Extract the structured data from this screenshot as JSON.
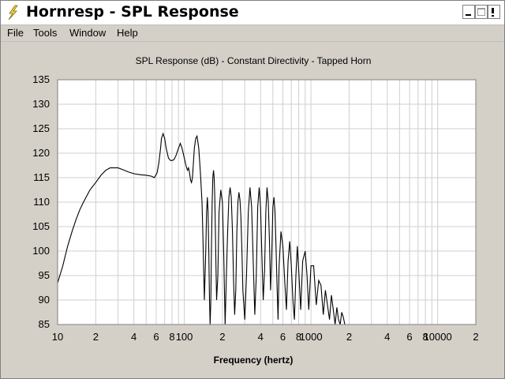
{
  "window": {
    "title": "Hornresp - SPL Response",
    "app_icon": "lightning-bolt-icon",
    "controls": [
      "minimize-icon",
      "maximize-icon",
      "close-icon"
    ]
  },
  "menu": {
    "items": [
      "File",
      "Tools",
      "Window",
      "Help"
    ]
  },
  "chart_data": {
    "type": "line",
    "title": "SPL Response (dB) - Constant Directivity - Tapped Horn",
    "xlabel": "Frequency (hertz)",
    "ylabel": "",
    "xscale": "log",
    "xlim": [
      10,
      20000
    ],
    "ylim": [
      85,
      135
    ],
    "yticks": [
      85,
      90,
      95,
      100,
      105,
      110,
      115,
      120,
      125,
      130,
      135
    ],
    "xtick_labels": [
      {
        "x": 10,
        "label": "10"
      },
      {
        "x": 20,
        "label": "2"
      },
      {
        "x": 40,
        "label": "4"
      },
      {
        "x": 60,
        "label": "6"
      },
      {
        "x": 80,
        "label": "8"
      },
      {
        "x": 100,
        "label": "100"
      },
      {
        "x": 200,
        "label": "2"
      },
      {
        "x": 400,
        "label": "4"
      },
      {
        "x": 600,
        "label": "6"
      },
      {
        "x": 800,
        "label": "8"
      },
      {
        "x": 1000,
        "label": "1000"
      },
      {
        "x": 2000,
        "label": "2"
      },
      {
        "x": 4000,
        "label": "4"
      },
      {
        "x": 6000,
        "label": "6"
      },
      {
        "x": 8000,
        "label": "8"
      },
      {
        "x": 10000,
        "label": "10000"
      },
      {
        "x": 20000,
        "label": "2"
      }
    ],
    "grid": true,
    "line_color": "#000000",
    "series": [
      {
        "x": [
          10,
          11,
          12,
          13,
          14,
          15,
          16,
          18,
          20,
          22,
          24,
          26,
          28,
          30,
          33,
          36,
          40,
          45,
          50,
          55,
          58,
          61,
          63,
          65,
          66,
          68,
          70,
          72,
          75,
          78,
          80,
          83,
          86,
          90,
          93,
          96,
          100,
          103,
          106,
          108,
          110,
          112,
          114,
          116,
          118,
          120,
          123,
          126,
          130,
          134,
          138,
          140,
          142,
          144,
          146,
          148,
          150,
          152,
          154,
          156,
          158,
          160,
          162,
          164,
          166,
          168,
          170,
          172,
          174,
          176,
          178,
          180,
          184,
          188,
          194,
          200,
          205,
          210,
          215,
          220,
          225,
          230,
          235,
          240,
          245,
          250,
          255,
          260,
          265,
          270,
          275,
          280,
          285,
          290,
          300,
          310,
          320,
          330,
          340,
          350,
          360,
          370,
          380,
          390,
          400,
          410,
          420,
          430,
          440,
          450,
          460,
          470,
          480,
          490,
          500,
          510,
          520,
          530,
          540,
          550,
          560,
          580,
          600,
          620,
          640,
          660,
          680,
          700,
          720,
          740,
          760,
          780,
          800,
          830,
          860,
          900,
          930,
          960,
          1000,
          1050,
          1100,
          1150,
          1200,
          1250,
          1300,
          1350,
          1400,
          1450,
          1500,
          1550,
          1600,
          1650,
          1700,
          1750,
          1800,
          1850,
          1900
        ],
        "y": [
          93.5,
          97,
          101,
          104,
          106.5,
          108.5,
          110,
          112.5,
          114,
          115.5,
          116.5,
          117,
          117,
          117,
          116.6,
          116.2,
          115.8,
          115.6,
          115.5,
          115.3,
          115,
          116,
          118,
          121,
          123,
          124,
          123,
          121,
          119,
          118.5,
          118.5,
          118.7,
          119.5,
          121,
          122,
          121,
          119,
          117.5,
          116.5,
          117,
          116,
          114.5,
          114,
          115,
          118,
          121,
          123,
          123.5,
          121,
          116,
          110,
          104,
          97,
          90,
          95,
          101,
          108,
          111,
          108,
          100,
          90,
          85,
          90,
          102,
          110,
          115,
          116.5,
          115,
          111,
          104,
          96,
          90,
          95,
          108,
          112.5,
          110,
          99,
          85,
          95,
          104,
          111,
          113,
          111,
          104,
          94,
          87,
          92,
          104,
          110,
          112,
          110.5,
          107,
          100,
          92,
          86,
          95,
          108,
          113,
          109,
          98,
          87,
          95,
          109,
          113,
          109,
          99,
          90,
          96,
          108,
          113,
          110,
          102,
          92,
          99,
          109,
          111,
          108,
          101,
          93,
          86,
          97,
          104,
          101,
          94,
          88,
          98,
          102,
          97,
          90,
          86,
          95,
          101,
          96,
          88,
          98,
          100,
          95,
          88,
          97,
          97,
          89,
          94,
          93,
          87,
          92,
          89,
          86,
          91,
          88,
          85,
          88.5,
          86,
          85,
          87.5,
          86.5,
          85,
          85
        ]
      }
    ]
  }
}
